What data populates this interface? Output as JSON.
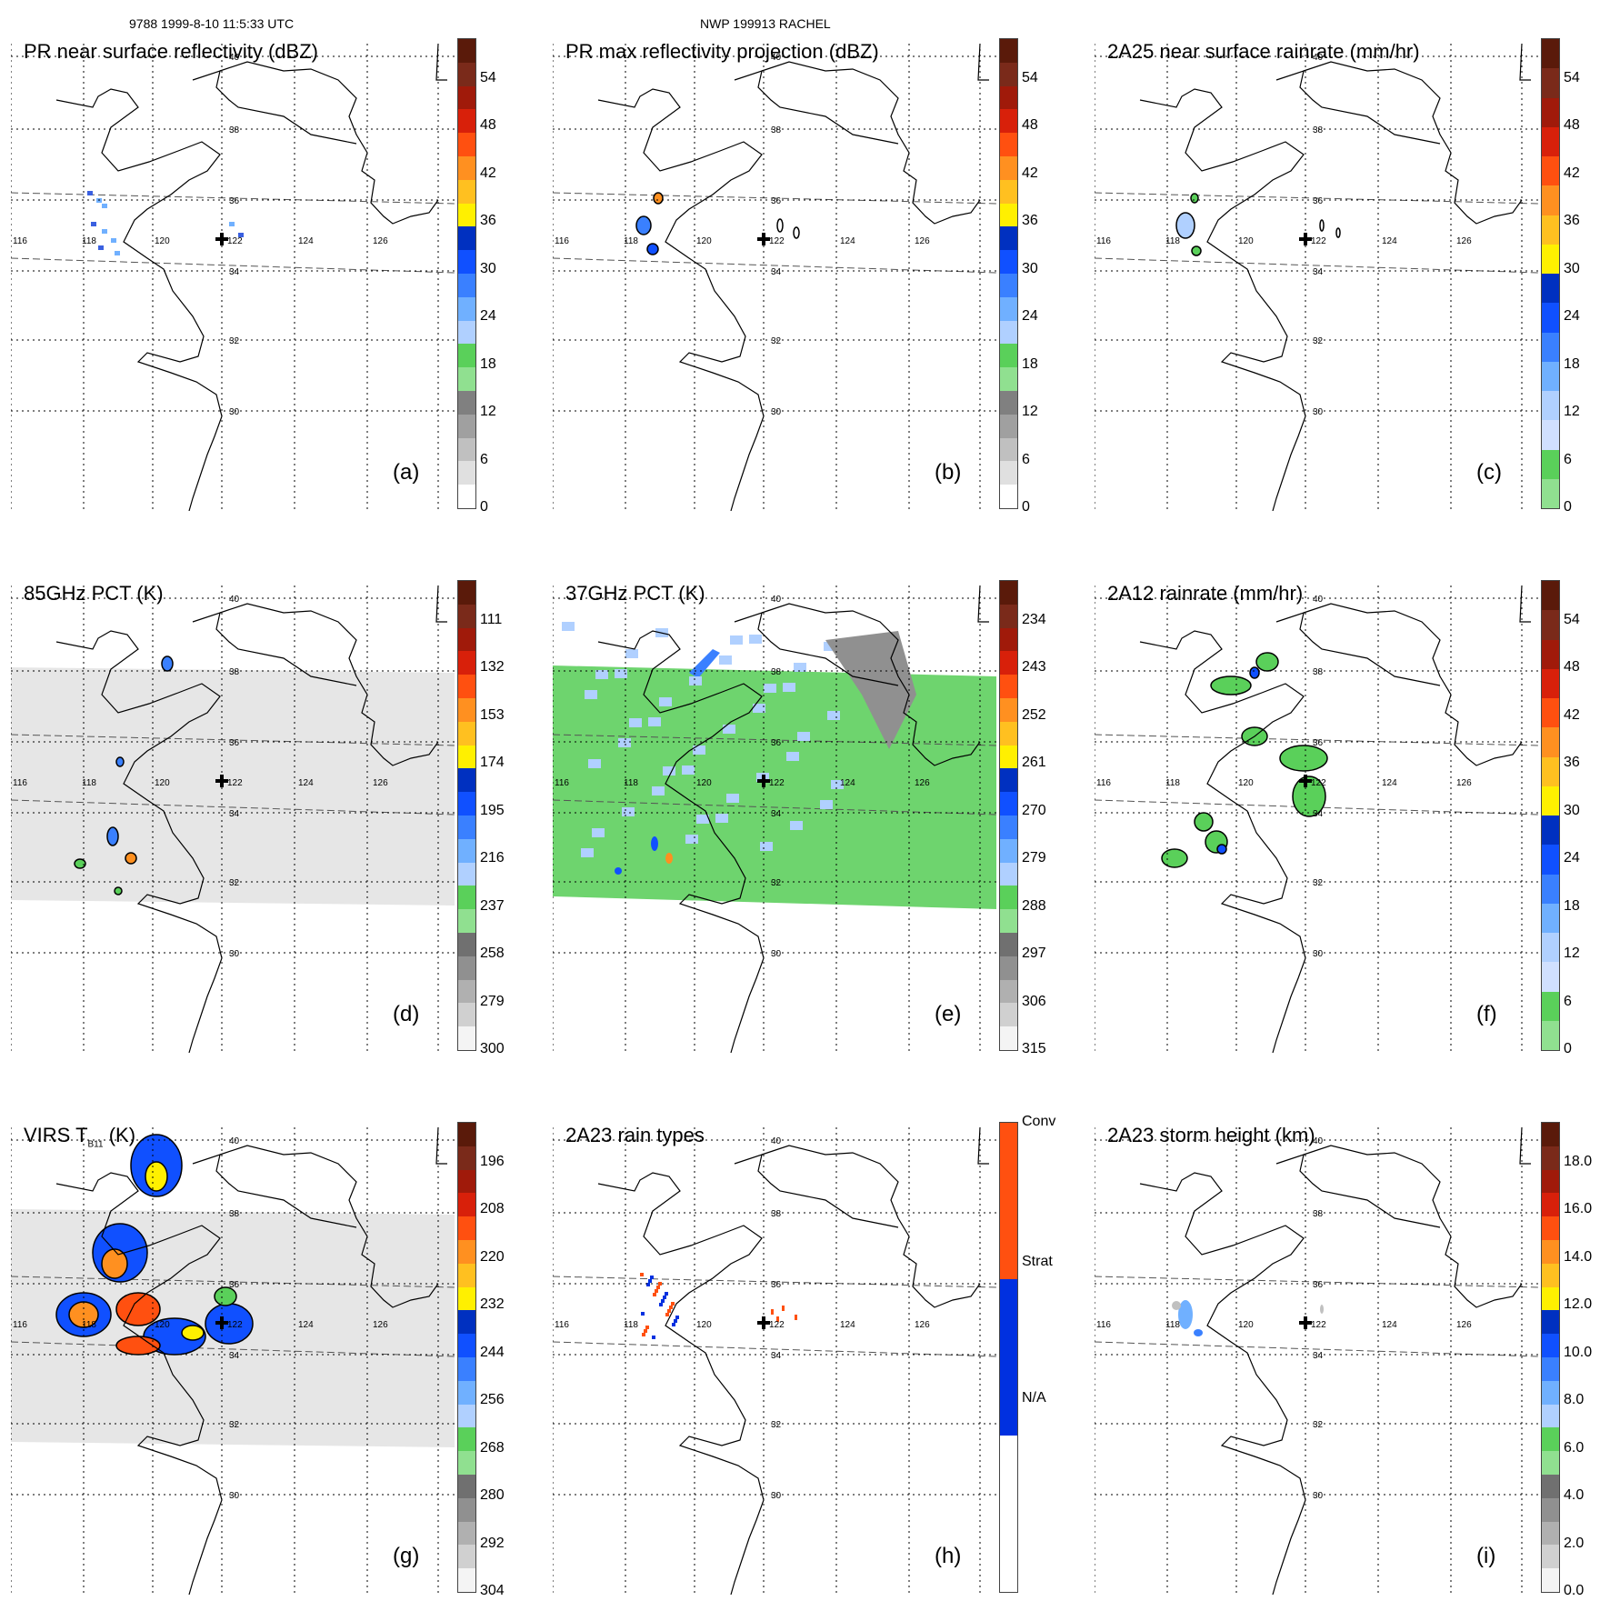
{
  "header": {
    "left": "9788 1999-8-10 11:5:33 UTC",
    "center": "NWP 199913 RACHEL"
  },
  "lat_labels": [
    "40",
    "38",
    "36",
    "34",
    "32",
    "30"
  ],
  "lon_labels": [
    "116",
    "118",
    "120",
    "122",
    "124",
    "126"
  ],
  "panels": [
    {
      "id": "a",
      "title": "PR near surface reflectivity (dBZ)",
      "letter": "(a)",
      "ticks": [
        "54",
        "48",
        "42",
        "36",
        "30",
        "24",
        "18",
        "12",
        "6",
        "0"
      ],
      "field": "none",
      "echo": "refl"
    },
    {
      "id": "b",
      "title": "PR max reflectivity projection (dBZ)",
      "letter": "(b)",
      "ticks": [
        "54",
        "48",
        "42",
        "36",
        "30",
        "24",
        "18",
        "12",
        "6",
        "0"
      ],
      "field": "none",
      "echo": "max"
    },
    {
      "id": "c",
      "title": "2A25 near surface rainrate (mm/hr)",
      "letter": "(c)",
      "ticks": [
        "54",
        "48",
        "42",
        "36",
        "30",
        "24",
        "18",
        "12",
        "6",
        "0"
      ],
      "field": "none",
      "echo": "rain"
    },
    {
      "id": "d",
      "title": "85GHz PCT (K)",
      "letter": "(d)",
      "ticks": [
        "111",
        "132",
        "153",
        "174",
        "195",
        "216",
        "237",
        "258",
        "279",
        "300"
      ],
      "field": "gray",
      "echo": "pct85"
    },
    {
      "id": "e",
      "title": "37GHz PCT (K)",
      "letter": "(e)",
      "ticks": [
        "234",
        "243",
        "252",
        "261",
        "270",
        "279",
        "288",
        "297",
        "306",
        "315"
      ],
      "field": "green",
      "echo": "pct37"
    },
    {
      "id": "f",
      "title": "2A12 rainrate (mm/hr)",
      "letter": "(f)",
      "ticks": [
        "54",
        "48",
        "42",
        "36",
        "30",
        "24",
        "18",
        "12",
        "6",
        "0"
      ],
      "field": "none",
      "echo": "tmi"
    },
    {
      "id": "g",
      "title": "VIRS T",
      "title_sub": "B11",
      "title_post": " (K)",
      "letter": "(g)",
      "ticks": [
        "196",
        "208",
        "220",
        "232",
        "244",
        "256",
        "268",
        "280",
        "292",
        "304"
      ],
      "field": "gray",
      "echo": "virs"
    },
    {
      "id": "h",
      "title": "2A23 rain types",
      "letter": "(h)",
      "ticks": [
        "Conv",
        "Strat",
        "N/A"
      ],
      "field": "none",
      "echo": "types"
    },
    {
      "id": "i",
      "title": "2A23 storm height (km)",
      "letter": "(i)",
      "ticks": [
        "18.0",
        "16.0",
        "14.0",
        "12.0",
        "10.0",
        "8.0",
        "6.0",
        "4.0",
        "2.0",
        "0.0"
      ],
      "field": "none",
      "echo": "height"
    }
  ],
  "colors": {
    "scale_a": [
      "#5a1a0a",
      "#7a2a1a",
      "#a01a0a",
      "#d8200a",
      "#ff5010",
      "#ff9020",
      "#ffc020",
      "#fff000",
      "#0030c0",
      "#1050ff",
      "#3a80ff",
      "#70b0ff",
      "#b0d0ff",
      "#5ad05a",
      "#90e090",
      "#808080",
      "#a0a0a0",
      "#c0c0c0",
      "#e0e0e0",
      "#ffffff"
    ],
    "scale_rain": [
      "#5a1a0a",
      "#7a2a1a",
      "#a01a0a",
      "#d8200a",
      "#ff5010",
      "#ff9020",
      "#ffc020",
      "#fff000",
      "#0030c0",
      "#1050ff",
      "#3a80ff",
      "#70b0ff",
      "#b0d0ff",
      "#d0e0ff",
      "#5ad05a",
      "#90e090"
    ],
    "scale_pct": [
      "#5a1a0a",
      "#7a2a1a",
      "#a01a0a",
      "#d8200a",
      "#ff5010",
      "#ff9020",
      "#ffc020",
      "#fff000",
      "#0030c0",
      "#1050ff",
      "#3a80ff",
      "#70b0ff",
      "#b0d0ff",
      "#5ad05a",
      "#90e090",
      "#707070",
      "#909090",
      "#b0b0b0",
      "#d0d0d0",
      "#f4f4f4"
    ],
    "scale_types": [
      "#ff5010",
      "#ff5010",
      "#ff5010",
      "#0030e0",
      "#0030e0",
      "#0030e0",
      "#ffffff",
      "#ffffff",
      "#ffffff"
    ],
    "gray_field": "#e6e6e6",
    "green_field": "#6ed46e",
    "grid": "#000000",
    "coast": "#000000"
  }
}
